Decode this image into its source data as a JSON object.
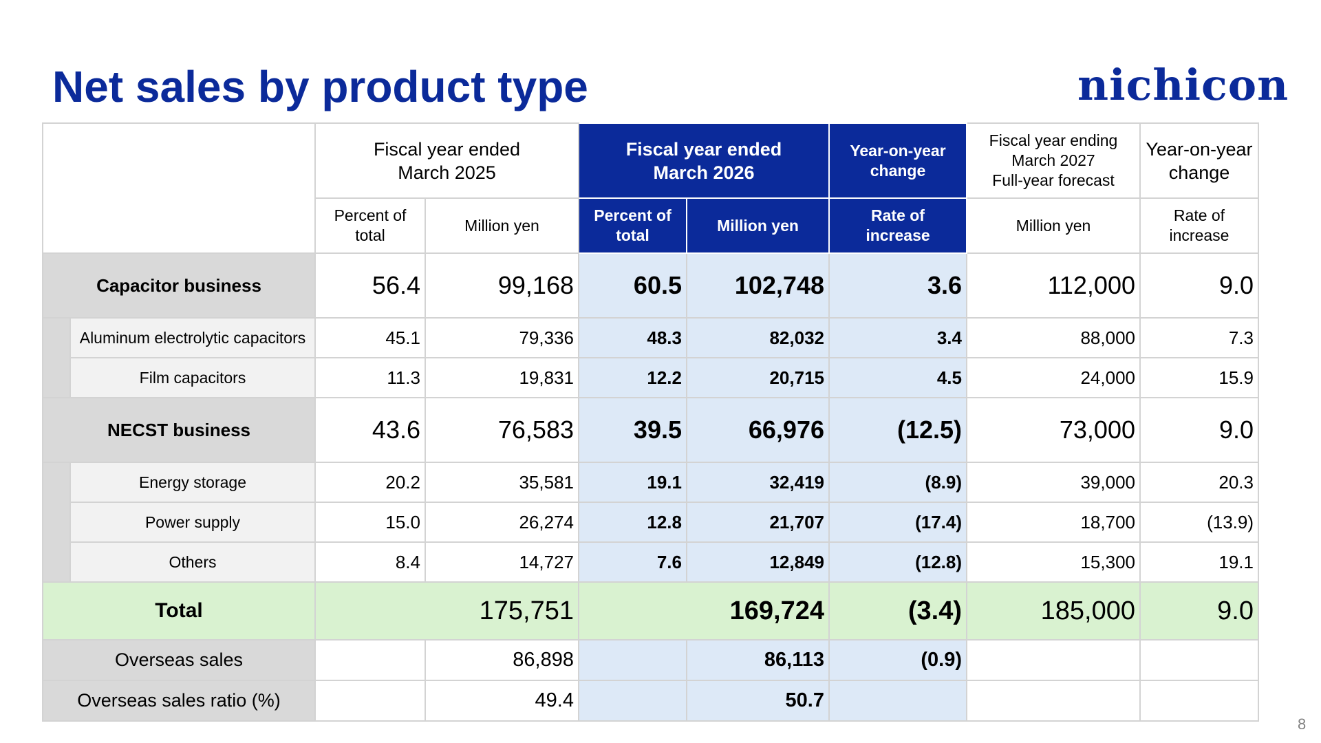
{
  "title": "Net sales by product type",
  "logo_text": "nichicon",
  "page_number": "8",
  "colors": {
    "title": "#0b2a9a",
    "header_highlight": "#0b2a9a",
    "column_highlight": "#dde9f7",
    "total_row": "#d9f2d0"
  },
  "headers": {
    "fy2025": [
      "Fiscal year ended",
      "March 2025"
    ],
    "fy2026": [
      "Fiscal year ended",
      "March 2026"
    ],
    "yoy1": [
      "Year-on-year",
      "change"
    ],
    "forecast": [
      "Fiscal year ending",
      "March 2027",
      "Full-year forecast"
    ],
    "yoy2": [
      "Year-on-year",
      "change"
    ],
    "percent_of_total": [
      "Percent of",
      "total"
    ],
    "million_yen": "Million yen",
    "rate_of_increase": [
      "Rate of",
      "increase"
    ]
  },
  "rows": [
    {
      "label": "Capacitor business",
      "pct25": "56.4",
      "yen25": "99,168",
      "pct26": "60.5",
      "yen26": "102,748",
      "rate": "3.6",
      "fc_yen": "112,000",
      "fc_rate": "9.0"
    },
    {
      "label": "Aluminum electrolytic capacitors",
      "pct25": "45.1",
      "yen25": "79,336",
      "pct26": "48.3",
      "yen26": "82,032",
      "rate": "3.4",
      "fc_yen": "88,000",
      "fc_rate": "7.3"
    },
    {
      "label": "Film capacitors",
      "pct25": "11.3",
      "yen25": "19,831",
      "pct26": "12.2",
      "yen26": "20,715",
      "rate": "4.5",
      "fc_yen": "24,000",
      "fc_rate": "15.9"
    },
    {
      "label": "NECST business",
      "pct25": "43.6",
      "yen25": "76,583",
      "pct26": "39.5",
      "yen26": "66,976",
      "rate": "(12.5)",
      "fc_yen": "73,000",
      "fc_rate": "9.0"
    },
    {
      "label": "Energy storage",
      "pct25": "20.2",
      "yen25": "35,581",
      "pct26": "19.1",
      "yen26": "32,419",
      "rate": "(8.9)",
      "fc_yen": "39,000",
      "fc_rate": "20.3"
    },
    {
      "label": "Power supply",
      "pct25": "15.0",
      "yen25": "26,274",
      "pct26": "12.8",
      "yen26": "21,707",
      "rate": "(17.4)",
      "fc_yen": "18,700",
      "fc_rate": "(13.9)"
    },
    {
      "label": "Others",
      "pct25": "8.4",
      "yen25": "14,727",
      "pct26": "7.6",
      "yen26": "12,849",
      "rate": "(12.8)",
      "fc_yen": "15,300",
      "fc_rate": "19.1"
    }
  ],
  "total": {
    "label": "Total",
    "yen25": "175,751",
    "yen26": "169,724",
    "rate": "(3.4)",
    "fc_yen": "185,000",
    "fc_rate": "9.0"
  },
  "overseas_sales": {
    "label": "Overseas sales",
    "yen25": "86,898",
    "yen26": "86,113",
    "rate": "(0.9)"
  },
  "overseas_ratio": {
    "label": "Overseas sales ratio (%)",
    "yen25": "49.4",
    "yen26": "50.7"
  }
}
